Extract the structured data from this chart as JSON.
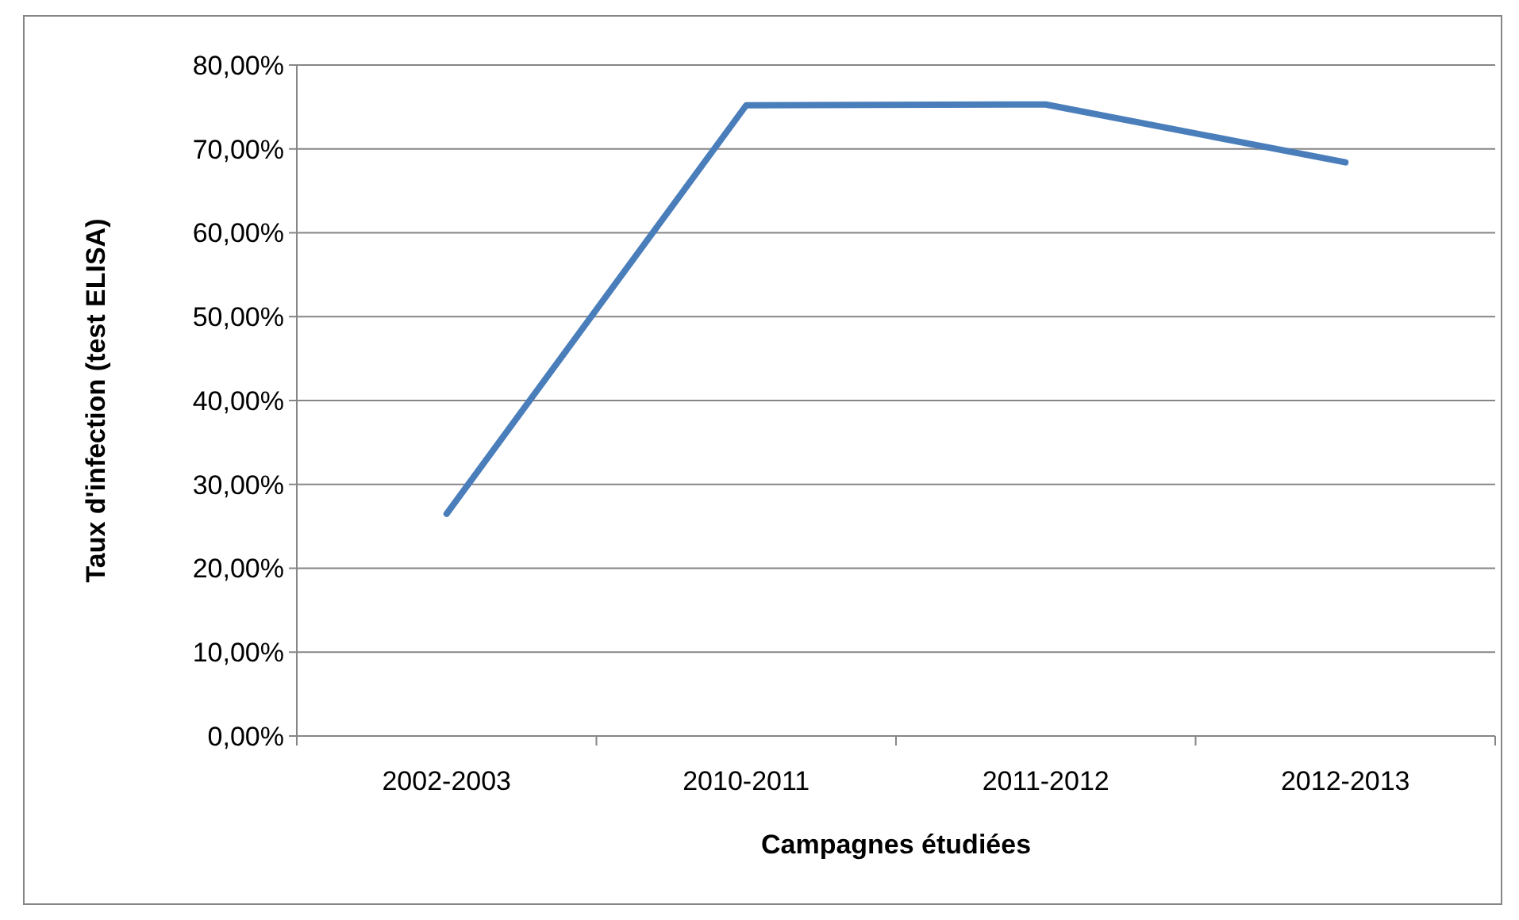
{
  "chart_data": {
    "type": "line",
    "xlabel": "Campagnes étudiées",
    "ylabel": "Taux d'infection (test ELISA)",
    "categories": [
      "2002-2003",
      "2010-2011",
      "2011-2012",
      "2012-2013"
    ],
    "series": [
      {
        "color": "#4a7ebb",
        "values": [
          26.5,
          75.2,
          75.3,
          68.4
        ]
      }
    ],
    "ylim": [
      0,
      80
    ],
    "yticks": [
      {
        "value": 0,
        "label": "0,00%"
      },
      {
        "value": 10,
        "label": "10,00%"
      },
      {
        "value": 20,
        "label": "20,00%"
      },
      {
        "value": 30,
        "label": "30,00%"
      },
      {
        "value": 40,
        "label": "40,00%"
      },
      {
        "value": 50,
        "label": "50,00%"
      },
      {
        "value": 60,
        "label": "60,00%"
      },
      {
        "value": 70,
        "label": "70,00%"
      },
      {
        "value": 80,
        "label": "80,00%"
      }
    ],
    "grid": "y",
    "marker": "none",
    "line_style": "solid"
  }
}
